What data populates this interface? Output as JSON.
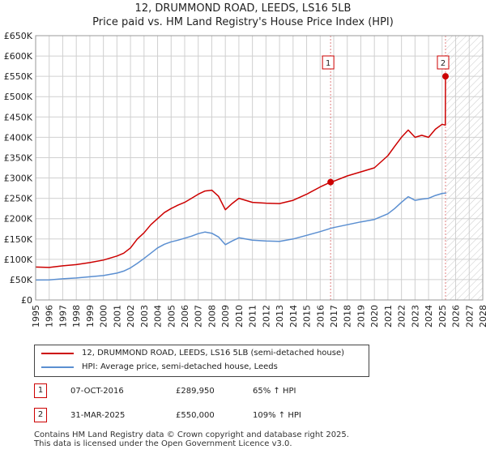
{
  "header": {
    "title_line1": "12, DRUMMOND ROAD, LEEDS, LS16 5LB",
    "title_line2": "Price paid vs. HM Land Registry's House Price Index (HPI)"
  },
  "colors": {
    "property": "#cc0000",
    "hpi": "#5b8fd1",
    "grid": "#d0d0d0",
    "marker_vline": "#e08080"
  },
  "chart_data": {
    "type": "line",
    "title": "Price paid vs. HM Land Registry's House Price Index (HPI)",
    "xlabel": "",
    "ylabel": "",
    "xlim": [
      1995,
      2028
    ],
    "ylim": [
      0,
      650000
    ],
    "x_ticks": [
      "1995",
      "1996",
      "1997",
      "1998",
      "1999",
      "2000",
      "2001",
      "2002",
      "2003",
      "2004",
      "2005",
      "2006",
      "2007",
      "2008",
      "2009",
      "2010",
      "2011",
      "2012",
      "2013",
      "2014",
      "2015",
      "2016",
      "2017",
      "2018",
      "2019",
      "2020",
      "2021",
      "2022",
      "2023",
      "2024",
      "2025",
      "2026",
      "2027",
      "2028"
    ],
    "y_ticks": [
      {
        "value": 0,
        "label": "£0"
      },
      {
        "value": 50000,
        "label": "£50K"
      },
      {
        "value": 100000,
        "label": "£100K"
      },
      {
        "value": 150000,
        "label": "£150K"
      },
      {
        "value": 200000,
        "label": "£200K"
      },
      {
        "value": 250000,
        "label": "£250K"
      },
      {
        "value": 300000,
        "label": "£300K"
      },
      {
        "value": 350000,
        "label": "£350K"
      },
      {
        "value": 400000,
        "label": "£400K"
      },
      {
        "value": 450000,
        "label": "£450K"
      },
      {
        "value": 500000,
        "label": "£500K"
      },
      {
        "value": 550000,
        "label": "£550K"
      },
      {
        "value": 600000,
        "label": "£600K"
      },
      {
        "value": 650000,
        "label": "£650K"
      }
    ],
    "future_hatch_from": 2025.3,
    "series": [
      {
        "name": "12, DRUMMOND ROAD, LEEDS, LS16 5LB (semi-detached house)",
        "color": "#cc0000",
        "points": [
          [
            1995.0,
            81000
          ],
          [
            1996.0,
            80000
          ],
          [
            1997.0,
            84000
          ],
          [
            1998.0,
            87000
          ],
          [
            1999.0,
            92000
          ],
          [
            2000.0,
            98000
          ],
          [
            2001.0,
            108000
          ],
          [
            2001.5,
            115000
          ],
          [
            2002.0,
            128000
          ],
          [
            2002.5,
            150000
          ],
          [
            2003.0,
            165000
          ],
          [
            2003.5,
            185000
          ],
          [
            2004.0,
            200000
          ],
          [
            2004.5,
            215000
          ],
          [
            2005.0,
            225000
          ],
          [
            2005.5,
            233000
          ],
          [
            2006.0,
            240000
          ],
          [
            2006.5,
            250000
          ],
          [
            2007.0,
            260000
          ],
          [
            2007.5,
            268000
          ],
          [
            2008.0,
            270000
          ],
          [
            2008.5,
            255000
          ],
          [
            2009.0,
            222000
          ],
          [
            2009.5,
            237000
          ],
          [
            2010.0,
            250000
          ],
          [
            2010.5,
            245000
          ],
          [
            2011.0,
            240000
          ],
          [
            2012.0,
            238000
          ],
          [
            2013.0,
            237000
          ],
          [
            2014.0,
            245000
          ],
          [
            2015.0,
            260000
          ],
          [
            2016.0,
            278000
          ],
          [
            2016.77,
            289950
          ],
          [
            2017.0,
            292000
          ],
          [
            2018.0,
            305000
          ],
          [
            2019.0,
            315000
          ],
          [
            2020.0,
            325000
          ],
          [
            2021.0,
            355000
          ],
          [
            2021.5,
            378000
          ],
          [
            2022.0,
            400000
          ],
          [
            2022.5,
            418000
          ],
          [
            2023.0,
            400000
          ],
          [
            2023.5,
            405000
          ],
          [
            2024.0,
            400000
          ],
          [
            2024.5,
            420000
          ],
          [
            2025.0,
            432000
          ],
          [
            2025.24,
            430000
          ],
          [
            2025.25,
            550000
          ],
          [
            2025.3,
            545000
          ]
        ]
      },
      {
        "name": "HPI: Average price, semi-detached house, Leeds",
        "color": "#5b8fd1",
        "points": [
          [
            1995.0,
            49000
          ],
          [
            1996.0,
            49500
          ],
          [
            1997.0,
            52000
          ],
          [
            1998.0,
            54000
          ],
          [
            1999.0,
            57000
          ],
          [
            2000.0,
            60000
          ],
          [
            2001.0,
            66000
          ],
          [
            2001.5,
            71000
          ],
          [
            2002.0,
            79000
          ],
          [
            2002.5,
            90000
          ],
          [
            2003.0,
            102000
          ],
          [
            2003.5,
            115000
          ],
          [
            2004.0,
            128000
          ],
          [
            2004.5,
            137000
          ],
          [
            2005.0,
            143000
          ],
          [
            2005.5,
            147000
          ],
          [
            2006.0,
            152000
          ],
          [
            2006.5,
            157000
          ],
          [
            2007.0,
            163000
          ],
          [
            2007.5,
            167000
          ],
          [
            2008.0,
            164000
          ],
          [
            2008.5,
            155000
          ],
          [
            2009.0,
            136000
          ],
          [
            2009.5,
            145000
          ],
          [
            2010.0,
            153000
          ],
          [
            2010.5,
            150000
          ],
          [
            2011.0,
            147000
          ],
          [
            2012.0,
            145000
          ],
          [
            2013.0,
            144000
          ],
          [
            2014.0,
            150000
          ],
          [
            2015.0,
            159000
          ],
          [
            2016.0,
            168000
          ],
          [
            2016.77,
            176000
          ],
          [
            2017.0,
            178000
          ],
          [
            2018.0,
            185000
          ],
          [
            2019.0,
            192000
          ],
          [
            2020.0,
            198000
          ],
          [
            2021.0,
            212000
          ],
          [
            2021.5,
            225000
          ],
          [
            2022.0,
            240000
          ],
          [
            2022.5,
            254000
          ],
          [
            2023.0,
            245000
          ],
          [
            2023.5,
            248000
          ],
          [
            2024.0,
            250000
          ],
          [
            2024.5,
            257000
          ],
          [
            2025.0,
            262000
          ],
          [
            2025.3,
            263000
          ]
        ]
      }
    ],
    "markers": [
      {
        "label": "1",
        "x": 2016.77,
        "y": 289950
      },
      {
        "label": "2",
        "x": 2025.25,
        "y": 550000
      }
    ]
  },
  "legend": {
    "property_label": "12, DRUMMOND ROAD, LEEDS, LS16 5LB (semi-detached house)",
    "hpi_label": "HPI: Average price, semi-detached house, Leeds"
  },
  "sales": [
    {
      "num": "1",
      "date": "07-OCT-2016",
      "price": "£289,950",
      "hpi_change": "65% ↑ HPI"
    },
    {
      "num": "2",
      "date": "31-MAR-2025",
      "price": "£550,000",
      "hpi_change": "109% ↑ HPI"
    }
  ],
  "footer": {
    "line1": "Contains HM Land Registry data © Crown copyright and database right 2025.",
    "line2": "This data is licensed under the Open Government Licence v3.0."
  }
}
